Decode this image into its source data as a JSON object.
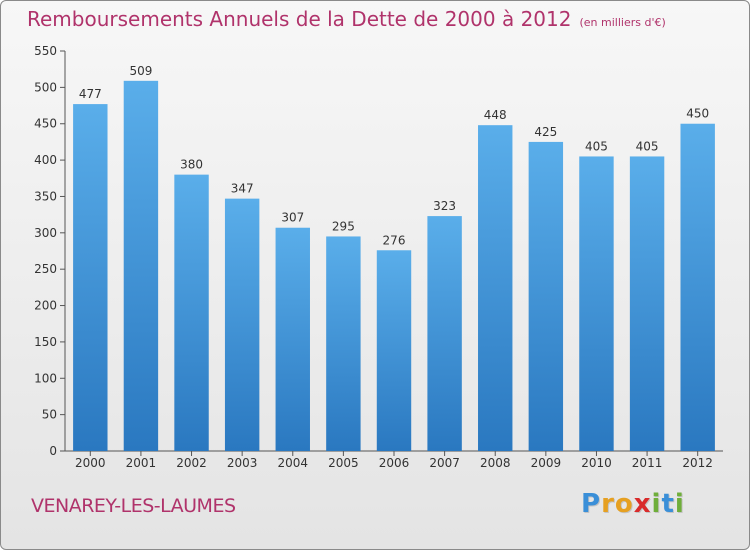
{
  "header": {
    "title": "Remboursements Annuels de la Dette de 2000 à 2012",
    "subtitle": "(en milliers d'€)"
  },
  "footer": {
    "town": "VENAREY-LES-LAUMES",
    "logo_letters": [
      "P",
      "r",
      "o",
      "x",
      "i",
      "t",
      "i"
    ],
    "logo_colors": [
      "#3a8fd8",
      "#e6a021",
      "#e6a021",
      "#d92b2b",
      "#6fae3a",
      "#3a8fd8",
      "#6fae3a"
    ]
  },
  "chart_data": {
    "type": "bar",
    "title": "Remboursements Annuels de la Dette de 2000 à 2012",
    "categories": [
      "2000",
      "2001",
      "2002",
      "2003",
      "2004",
      "2005",
      "2006",
      "2007",
      "2008",
      "2009",
      "2010",
      "2011",
      "2012"
    ],
    "values": [
      477,
      509,
      380,
      347,
      307,
      295,
      276,
      323,
      448,
      425,
      405,
      405,
      450
    ],
    "yticks": [
      0,
      50,
      100,
      150,
      200,
      250,
      300,
      350,
      400,
      450,
      500,
      550
    ],
    "ylim": [
      0,
      550
    ],
    "grid": false,
    "bar_color": "#3a92d8"
  }
}
